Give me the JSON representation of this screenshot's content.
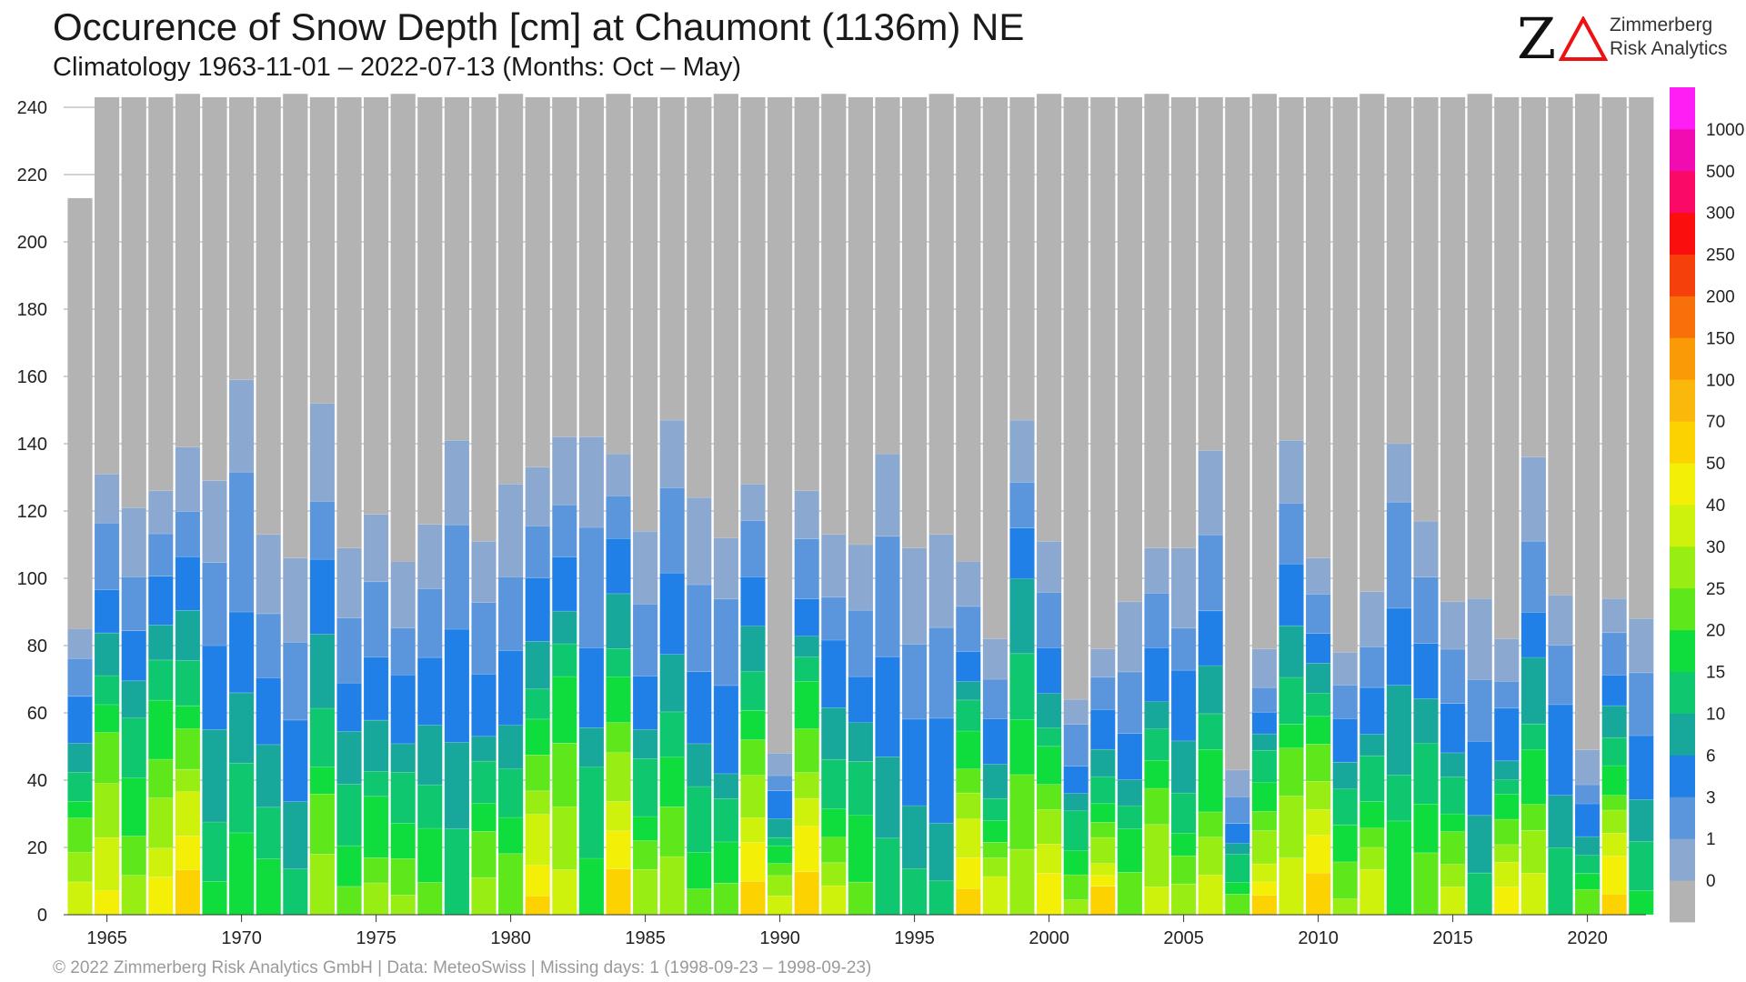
{
  "header": {
    "title": "Occurence of Snow Depth [cm] at Chaumont (1136m) NE",
    "subtitle": "Climatology 1963-11-01 – 2022-07-13 (Months: Oct – May)"
  },
  "logo": {
    "mark": "Z",
    "line1": "Zimmerberg",
    "line2": "Risk Analytics"
  },
  "footer": "©  2022 Zimmerberg Risk Analytics GmbH | Data: MeteoSwiss | Missing days: 1 (1998-09-23 – 1998-09-23)",
  "chart_data": {
    "type": "bar",
    "stacked": true,
    "ylim": [
      0,
      245
    ],
    "yticks": [
      0,
      20,
      40,
      60,
      80,
      100,
      120,
      140,
      160,
      180,
      200,
      220,
      240
    ],
    "xticks": [
      1965,
      1970,
      1975,
      1980,
      1985,
      1990,
      1995,
      2000,
      2005,
      2010,
      2015,
      2020
    ],
    "missing_color": "#b3b3b3",
    "grid": true,
    "colorbar": {
      "position": "right",
      "labels": [
        "0",
        "1",
        "3",
        "6",
        "10",
        "15",
        "20",
        "25",
        "30",
        "40",
        "50",
        "70",
        "100",
        "150",
        "200",
        "250",
        "300",
        "500",
        "1000"
      ],
      "colors": [
        "#b3b3b3",
        "#8aa8d0",
        "#5b96dc",
        "#2080e8",
        "#17a79b",
        "#0ec76e",
        "#0fdd3e",
        "#5ee81c",
        "#98ee12",
        "#cff20d",
        "#f4ef06",
        "#fcd200",
        "#fbb80c",
        "#f99a06",
        "#f77009",
        "#f5400b",
        "#fa0e0e",
        "#fa0a66",
        "#f00cb0",
        "#ff1ff5"
      ]
    },
    "years": [
      1964,
      1965,
      1966,
      1967,
      1968,
      1969,
      1970,
      1971,
      1972,
      1973,
      1974,
      1975,
      1976,
      1977,
      1978,
      1979,
      1980,
      1981,
      1982,
      1983,
      1984,
      1985,
      1986,
      1987,
      1988,
      1989,
      1990,
      1991,
      1992,
      1993,
      1994,
      1995,
      1996,
      1997,
      1998,
      1999,
      2000,
      2001,
      2002,
      2003,
      2004,
      2005,
      2006,
      2007,
      2008,
      2009,
      2010,
      2011,
      2012,
      2013,
      2014,
      2015,
      2016,
      2017,
      2018,
      2019,
      2020,
      2021,
      2022
    ],
    "totals": [
      213,
      243,
      243,
      243,
      244,
      243,
      243,
      243,
      244,
      243,
      243,
      243,
      244,
      243,
      243,
      243,
      244,
      243,
      243,
      243,
      244,
      243,
      243,
      243,
      244,
      243,
      243,
      243,
      244,
      243,
      243,
      243,
      244,
      243,
      243,
      243,
      244,
      243,
      243,
      243,
      244,
      243,
      243,
      243,
      244,
      243,
      243,
      243,
      244,
      243,
      243,
      243,
      244,
      243,
      243,
      243,
      244,
      243,
      243
    ],
    "snow_tops": [
      85,
      131,
      121,
      126,
      139,
      129,
      159,
      113,
      106,
      152,
      109,
      119,
      105,
      116,
      141,
      111,
      128,
      133,
      142,
      142,
      137,
      114,
      147,
      124,
      112,
      128,
      48,
      126,
      113,
      110,
      137,
      109,
      113,
      105,
      82,
      147,
      111,
      64,
      79,
      93,
      109,
      109,
      138,
      43,
      79,
      141,
      106,
      78,
      96,
      140,
      117,
      93,
      94,
      82,
      136,
      95,
      49,
      94,
      88
    ]
  }
}
